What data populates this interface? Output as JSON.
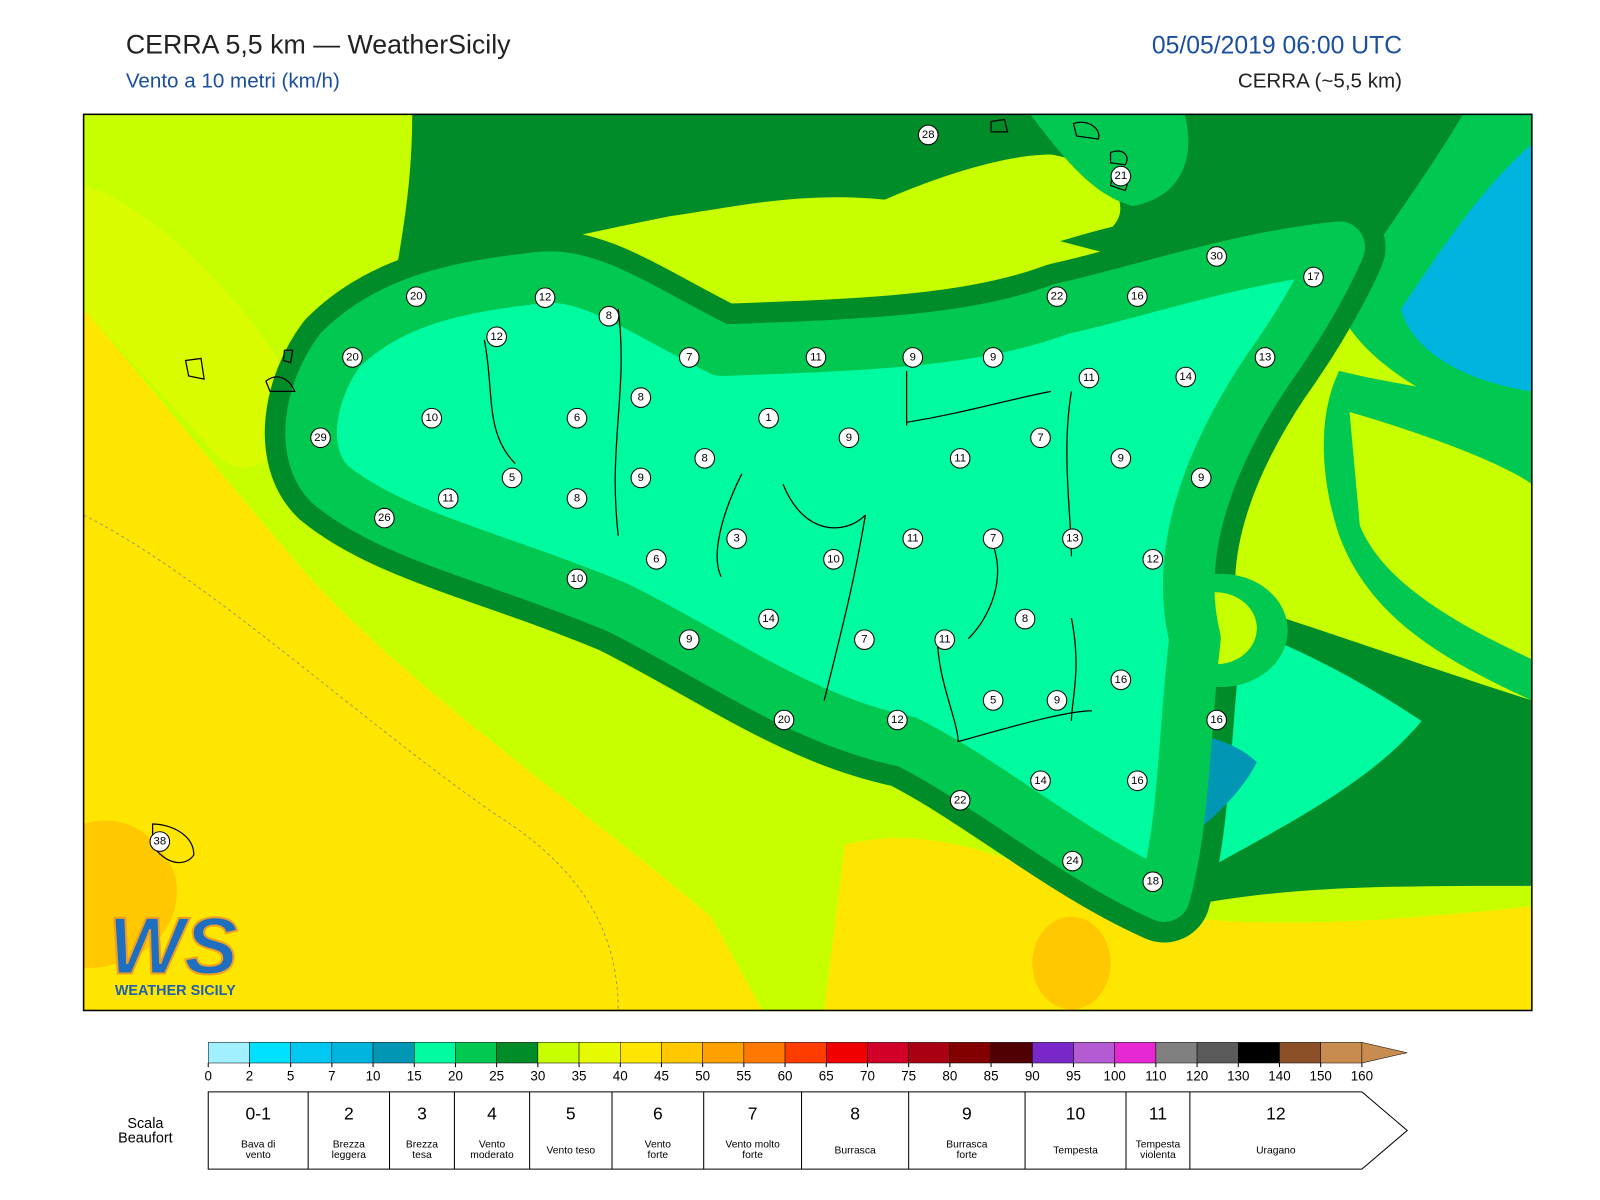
{
  "header": {
    "title": "CERRA 5,5 km — WeatherSicily",
    "subtitle": "Vento a 10 metri (km/h)",
    "datetime": "05/05/2019 06:00 UTC",
    "model": "CERRA (~5,5 km)"
  },
  "stations": [
    28,
    21,
    30,
    17,
    20,
    12,
    22,
    16,
    8,
    12,
    20,
    7,
    11,
    9,
    9,
    13,
    11,
    14,
    8,
    10,
    6,
    1,
    29,
    9,
    7,
    8,
    11,
    9,
    5,
    9,
    9,
    11,
    8,
    26,
    3,
    11,
    7,
    13,
    6,
    10,
    12,
    10,
    14,
    8,
    9,
    7,
    11,
    16,
    5,
    9,
    20,
    12,
    16,
    14,
    16,
    22,
    24,
    18,
    38
  ],
  "colorbar": {
    "ticks": [
      0,
      2,
      5,
      7,
      10,
      15,
      20,
      25,
      30,
      35,
      40,
      45,
      50,
      55,
      60,
      65,
      70,
      75,
      80,
      85,
      90,
      95,
      100,
      110,
      120,
      130,
      140,
      150,
      160
    ],
    "colors": [
      "#a0f0ff",
      "#00e0ff",
      "#00c8f0",
      "#00b4e0",
      "#0096b4",
      "#00faa0",
      "#00c850",
      "#008c28",
      "#c8ff00",
      "#e6fa00",
      "#ffe600",
      "#ffc800",
      "#ffa000",
      "#ff7800",
      "#ff3c00",
      "#f00000",
      "#d20028",
      "#aa0014",
      "#820000",
      "#500000",
      "#7828c8",
      "#b45ad2",
      "#e628d2",
      "#808080",
      "#5a5a5a",
      "#000000",
      "#8c5028",
      "#c88c50"
    ]
  },
  "beaufort": {
    "label": [
      "Scala",
      "Beaufort"
    ],
    "levels": [
      {
        "force": "0-1",
        "name": [
          "Bava di",
          "vento"
        ]
      },
      {
        "force": "2",
        "name": [
          "Brezza",
          "leggera"
        ]
      },
      {
        "force": "3",
        "name": [
          "Brezza",
          "tesa"
        ]
      },
      {
        "force": "4",
        "name": [
          "Vento",
          "moderato"
        ]
      },
      {
        "force": "5",
        "name": [
          "Vento teso"
        ]
      },
      {
        "force": "6",
        "name": [
          "Vento",
          "forte"
        ]
      },
      {
        "force": "7",
        "name": [
          "Vento molto",
          "forte"
        ]
      },
      {
        "force": "8",
        "name": [
          "Burrasca"
        ]
      },
      {
        "force": "9",
        "name": [
          "Burrasca",
          "forte"
        ]
      },
      {
        "force": "10",
        "name": [
          "Tempesta"
        ]
      },
      {
        "force": "11",
        "name": [
          "Tempesta",
          "violenta"
        ]
      },
      {
        "force": "12",
        "name": [
          "Uragano"
        ]
      }
    ]
  },
  "logo": {
    "mark": "WS",
    "text": "WEATHER SICILY"
  }
}
